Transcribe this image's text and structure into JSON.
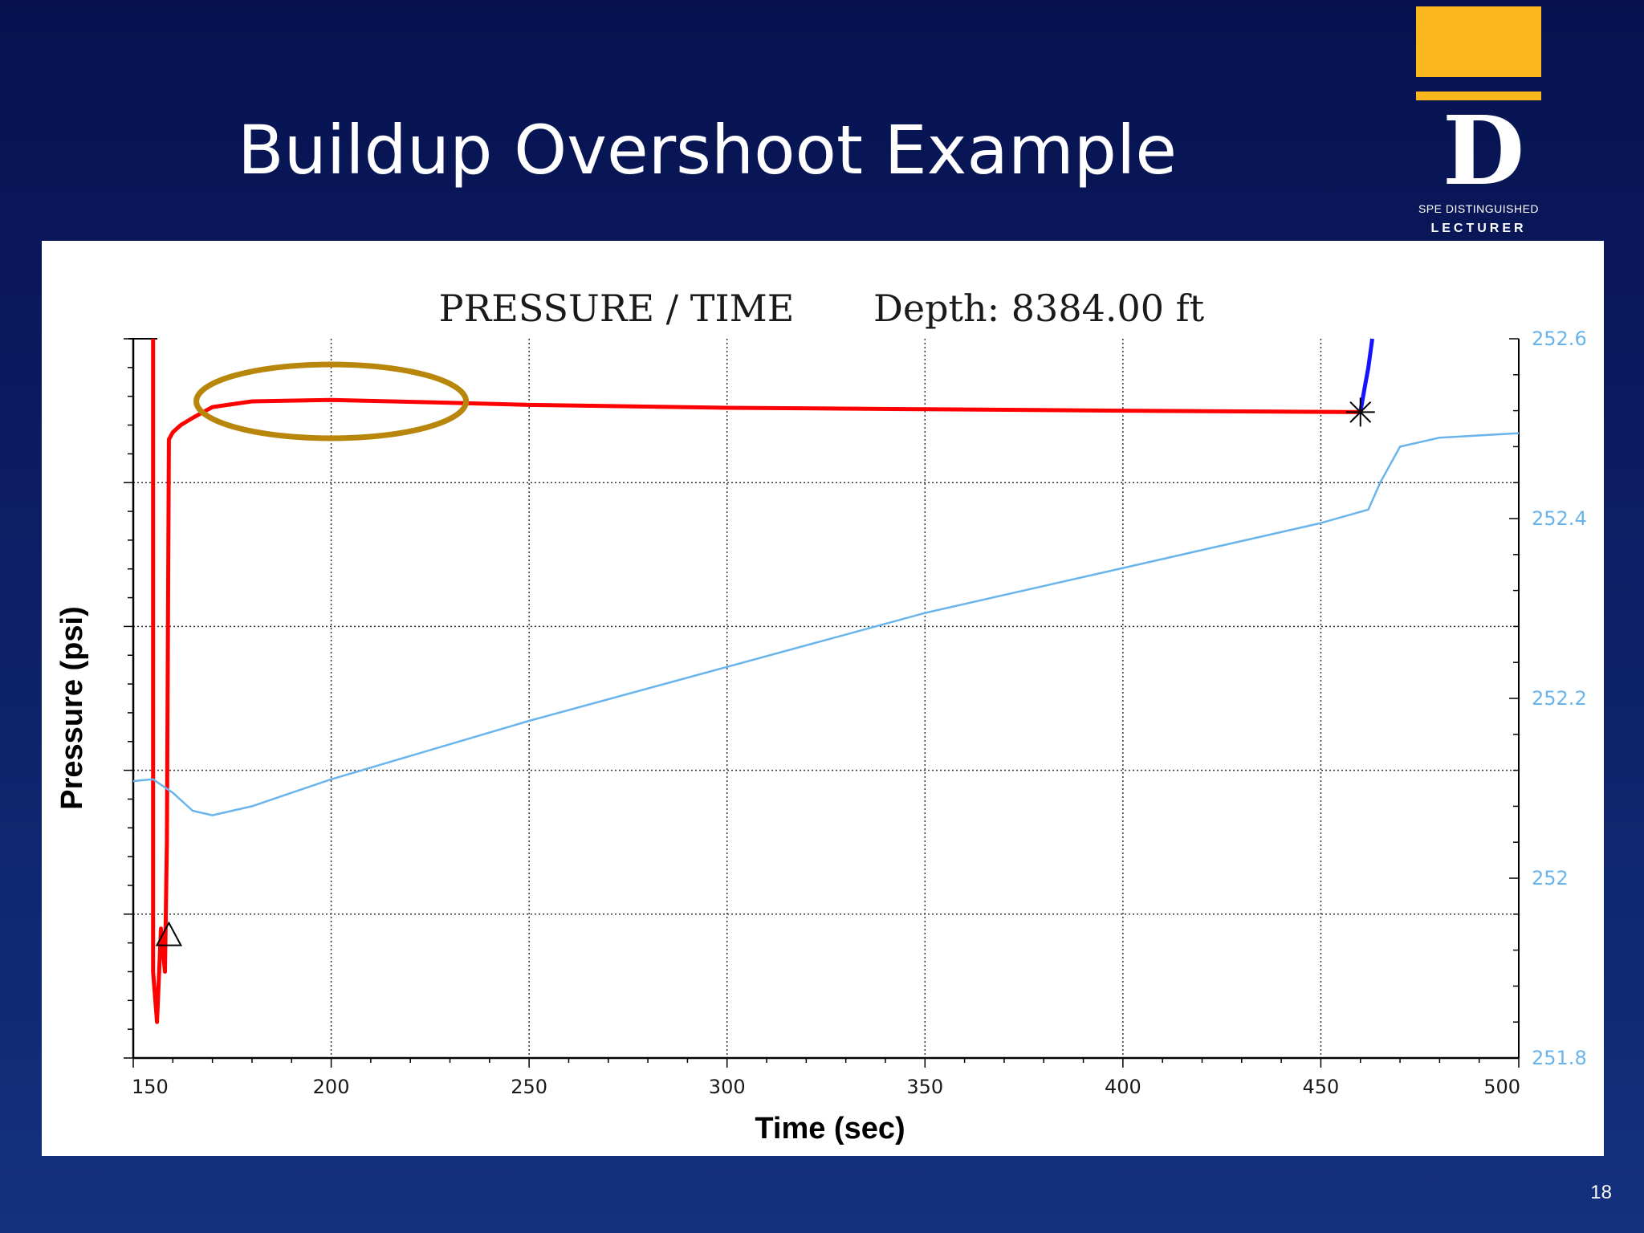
{
  "slide": {
    "title": "Buildup Overshoot Example",
    "page_number": "18"
  },
  "logo": {
    "letter": "D",
    "line1": "SPE DISTINGUISHED",
    "line2": "LECTURER"
  },
  "chart_data": {
    "type": "line",
    "title": "PRESSURE / TIME",
    "subtitle": "Depth: 8384.00 ft",
    "xlabel": "Time (sec)",
    "ylabel": "Pressure (psi)",
    "xlim": [
      150,
      500
    ],
    "x_ticks": [
      150,
      200,
      250,
      300,
      350,
      400,
      450,
      500
    ],
    "x_tick_labels": [
      "150",
      "200",
      "250",
      "300",
      "350",
      "400",
      "450",
      "500"
    ],
    "y2lim": [
      251.8,
      252.6
    ],
    "y2_ticks": [
      251.8,
      252.0,
      252.2,
      252.4,
      252.6
    ],
    "y2_tick_labels": [
      "251.8",
      "252",
      "252.2",
      "252.4",
      "252.6"
    ],
    "grid": true,
    "series": [
      {
        "name": "",
        "color": "#ff0000",
        "axis": "left",
        "x": [
          155,
          155,
          156,
          157,
          158,
          158.5,
          159,
          160,
          162,
          165,
          170,
          180,
          200,
          230,
          250,
          300,
          350,
          400,
          460
        ],
        "y": [
          1.0,
          0.12,
          0.05,
          0.18,
          0.12,
          0.3,
          0.86,
          0.87,
          0.88,
          0.89,
          0.905,
          0.913,
          0.915,
          0.911,
          0.908,
          0.904,
          0.902,
          0.9,
          0.898
        ]
      },
      {
        "name": "",
        "color": "#1414ff",
        "axis": "left",
        "x": [
          460,
          461,
          462,
          463
        ],
        "y": [
          0.898,
          0.93,
          0.96,
          1.0
        ]
      },
      {
        "name": "",
        "color": "#6ab4ec",
        "axis": "right",
        "x": [
          150,
          155,
          160,
          165,
          170,
          180,
          200,
          250,
          300,
          350,
          400,
          450,
          462,
          465,
          470,
          480,
          500
        ],
        "y": [
          252.108,
          252.11,
          252.095,
          252.075,
          252.07,
          252.08,
          252.11,
          252.175,
          252.235,
          252.295,
          252.345,
          252.395,
          252.41,
          252.44,
          252.48,
          252.49,
          252.495
        ]
      }
    ],
    "annotations": [
      {
        "type": "ellipse",
        "color": "#b8860b",
        "x_center": 200,
        "y_center": 0.913,
        "note": "overshoot"
      },
      {
        "type": "triangle-marker",
        "x": 159,
        "y": 0.17
      },
      {
        "type": "star-marker",
        "x": 460,
        "y": 0.898
      }
    ]
  }
}
